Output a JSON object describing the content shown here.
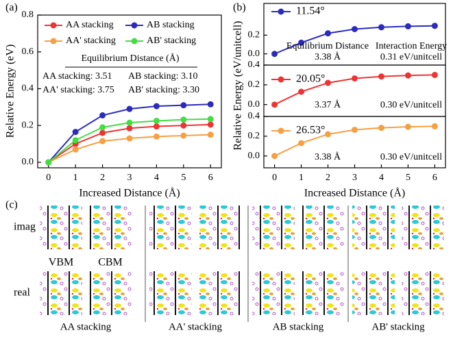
{
  "chart_data": [
    {
      "type": "line",
      "panel_label": "(a)",
      "xlabel": "Increased Distance (Å)",
      "ylabel": "Relative Energy (eV)",
      "x": [
        0,
        1,
        2,
        3,
        4,
        5,
        6
      ],
      "xlim": [
        -0.4,
        6.4
      ],
      "ylim": [
        -0.03,
        0.8
      ],
      "xticks": [
        0,
        1,
        2,
        3,
        4,
        5,
        6
      ],
      "yticks": [
        {
          "value": 0,
          "label": "0.0"
        },
        {
          "value": 0.2,
          "label": "0.2"
        },
        {
          "value": 0.4,
          "label": "0.4"
        },
        {
          "value": 0.6,
          "label": "0.6"
        },
        {
          "value": 0.8,
          "label": "0.8"
        }
      ],
      "legend_position": "upper left",
      "series": [
        {
          "name": "AA stacking",
          "color": "#ee3333",
          "values": [
            0,
            0.1,
            0.16,
            0.185,
            0.195,
            0.2,
            0.205
          ]
        },
        {
          "name": "AB stacking",
          "color": "#2b2bbd",
          "values": [
            0,
            0.165,
            0.255,
            0.29,
            0.305,
            0.31,
            0.315
          ]
        },
        {
          "name": "AA' stacking",
          "color": "#f5a042",
          "values": [
            0,
            0.07,
            0.115,
            0.13,
            0.14,
            0.145,
            0.15
          ]
        },
        {
          "name": "AB' stacking",
          "color": "#44dd44",
          "values": [
            0,
            0.12,
            0.19,
            0.215,
            0.225,
            0.232,
            0.235
          ]
        }
      ],
      "annotations": [
        {
          "text": "Equilibrium Distance (Å)",
          "color": "#000000"
        },
        {
          "text": "AA stacking: 3.51",
          "color": "#ee3333"
        },
        {
          "text": "AB stacking: 3.10",
          "color": "#2b2bbd"
        },
        {
          "text": "AA' stacking: 3.75",
          "color": "#f5a042"
        },
        {
          "text": "AB' stacking: 3.30",
          "color": "#44dd44"
        }
      ]
    },
    {
      "type": "line",
      "panel_label": "(b)",
      "x": [
        0,
        1,
        2,
        3,
        4,
        5,
        6
      ],
      "xlim": [
        -0.4,
        6.4
      ],
      "ylim": [
        -0.12,
        0.54
      ],
      "yticks": [
        {
          "value": 0,
          "label": "0.0"
        },
        {
          "value": 0.2,
          "label": "0.2"
        }
      ],
      "series": [
        {
          "color": "#2b2bbd",
          "values": [
            0,
            0.12,
            0.22,
            0.265,
            0.285,
            0.295,
            0.3
          ]
        }
      ],
      "annotations": [
        {
          "text": "11.54°",
          "color": "#2b2bbd"
        },
        {
          "text": "Equilibrium Distance",
          "color": "#000000"
        },
        {
          "text": "Interaction Energy",
          "color": "#000000"
        },
        {
          "text": "3.38 Å",
          "color": "#2b2bbd"
        },
        {
          "text": "0.31 eV/unitcell",
          "color": "#2b2bbd"
        }
      ]
    },
    {
      "type": "line",
      "ylabel": "Relative Energy (eV/unitcell)",
      "x": [
        0,
        1,
        2,
        3,
        4,
        5,
        6
      ],
      "xlim": [
        -0.4,
        6.4
      ],
      "ylim": [
        -0.12,
        0.4
      ],
      "yticks": [
        {
          "value": 0,
          "label": "0.0"
        },
        {
          "value": 0.2,
          "label": "0.2"
        },
        {
          "value": 0.4,
          "label": "0.4"
        }
      ],
      "series": [
        {
          "color": "#ee3333",
          "values": [
            0,
            0.13,
            0.22,
            0.265,
            0.285,
            0.295,
            0.3
          ]
        }
      ],
      "annotations": [
        {
          "text": "20.05°",
          "color": "#ee3333"
        },
        {
          "text": "3.37 Å",
          "color": "#ee3333"
        },
        {
          "text": "0.30 eV/unitcell",
          "color": "#ee3333"
        }
      ]
    },
    {
      "type": "line",
      "xlabel": "Increased Distance (Å)",
      "x": [
        0,
        1,
        2,
        3,
        4,
        5,
        6
      ],
      "xlim": [
        -0.4,
        6.4
      ],
      "ylim": [
        -0.12,
        0.4
      ],
      "xticks": [
        0,
        1,
        2,
        3,
        4,
        5,
        6
      ],
      "yticks": [
        {
          "value": 0,
          "label": "0.0"
        },
        {
          "value": 0.2,
          "label": "0.2"
        },
        {
          "value": 0.4,
          "label": "0.4"
        }
      ],
      "series": [
        {
          "color": "#f5a042",
          "values": [
            0,
            0.13,
            0.22,
            0.265,
            0.285,
            0.295,
            0.3
          ]
        }
      ],
      "annotations": [
        {
          "text": "26.53°",
          "color": "#f5a042"
        },
        {
          "text": "3.38 Å",
          "color": "#f5a042"
        },
        {
          "text": "0.30 eV/unitcell",
          "color": "#f5a042"
        }
      ]
    }
  ],
  "figure_c": {
    "panel_label": "(c)",
    "rows": [
      "imag",
      "real"
    ],
    "bands": [
      "VBM",
      "CBM"
    ],
    "stackings": [
      {
        "label": "AA stacking",
        "color": "#ee3333"
      },
      {
        "label": "AA' stacking",
        "color": "#f5a042"
      },
      {
        "label": "AB stacking",
        "color": "#2b2bbd"
      },
      {
        "label": "AB' stacking",
        "color": "#44dd44"
      }
    ]
  }
}
